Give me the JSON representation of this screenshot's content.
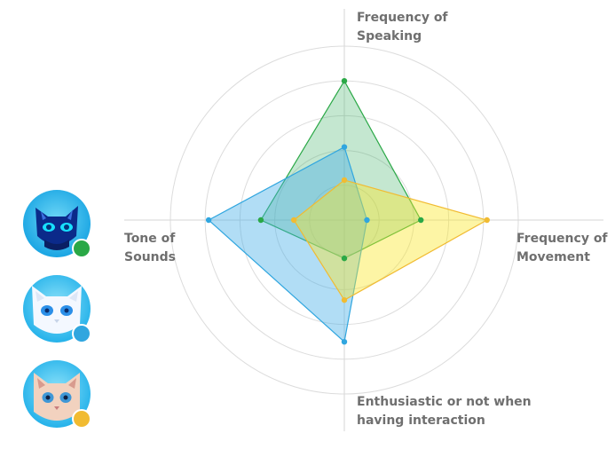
{
  "chart_data": {
    "type": "radar",
    "axes": [
      {
        "key": "speaking",
        "label": "Frequency of\nSpeaking"
      },
      {
        "key": "movement",
        "label": "Frequency of\nMovement"
      },
      {
        "key": "enthusiasm",
        "label": "Enthusiastic or not when\nhaving interaction"
      },
      {
        "key": "tone",
        "label": "Tone of\nSounds"
      }
    ],
    "rings": 5,
    "rlim": [
      0,
      5
    ],
    "series": [
      {
        "color": "#2aa846",
        "fill": "rgba(70,180,110,0.32)",
        "values": [
          4.0,
          2.2,
          1.1,
          2.4
        ],
        "avatar": "dark-blue-robot-cat"
      },
      {
        "color": "#30a6df",
        "fill": "rgba(70,175,230,0.42)",
        "values": [
          2.1,
          0.65,
          3.5,
          3.9
        ],
        "avatar": "white-robot-cat"
      },
      {
        "color": "#f1bb32",
        "fill": "rgba(250,230,40,0.42)",
        "values": [
          1.15,
          4.1,
          2.3,
          1.45
        ],
        "avatar": "cream-cat"
      }
    ]
  }
}
